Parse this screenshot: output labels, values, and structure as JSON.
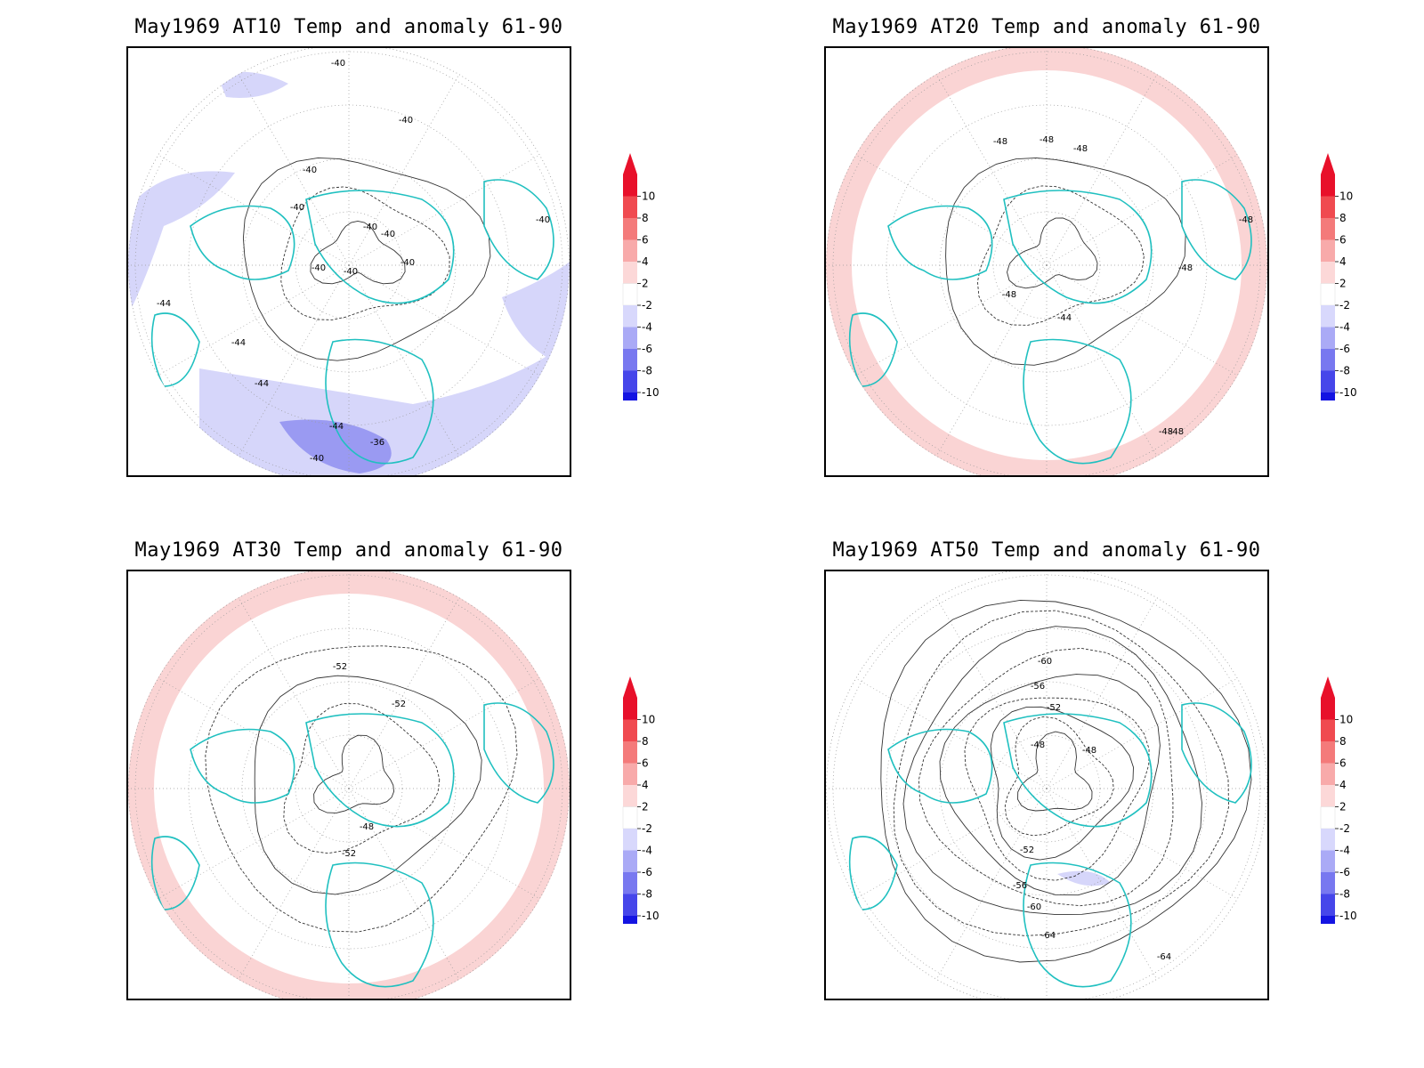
{
  "panels": [
    {
      "title": "May1969 AT10 Temp and anomaly 61-90",
      "contour_labels": [
        "-40",
        "-40",
        "-40",
        "-40",
        "-40",
        "-40",
        "-40",
        "-40",
        "-40",
        "-40",
        "-44",
        "-44",
        "-44",
        "-44",
        "-36",
        "-40"
      ],
      "anomaly": "cool"
    },
    {
      "title": "May1969 AT20 Temp and anomaly 61-90",
      "contour_labels": [
        "-48",
        "-48",
        "-48",
        "-48",
        "-48",
        "-48",
        "-44",
        "-48",
        "-48"
      ],
      "anomaly": "warm"
    },
    {
      "title": "May1969 AT30 Temp and anomaly 61-90",
      "contour_labels": [
        "-52",
        "-52",
        "-48",
        "-52"
      ],
      "anomaly": "warm"
    },
    {
      "title": "May1969 AT50 Temp and anomaly 61-90",
      "contour_labels": [
        "-60",
        "-56",
        "-52",
        "-48",
        "-48",
        "-52",
        "-56",
        "-60",
        "-64",
        "-64"
      ],
      "anomaly": "mixed"
    }
  ],
  "colorbar": {
    "labels": [
      "10",
      "8",
      "6",
      "4",
      "2",
      "-2",
      "-4",
      "-6",
      "-8",
      "-10"
    ],
    "colors": [
      "#e8102a",
      "#f04a50",
      "#f47a7a",
      "#f8aaaa",
      "#fcd8d8",
      "#ffffff",
      "#d8d8fc",
      "#aaaaf6",
      "#7878f0",
      "#4646ea",
      "#1414e2"
    ],
    "top_arrow_color": "#e8102a",
    "bottom_arrow_color": "#1414e2"
  },
  "colors": {
    "coast": "#20c0c0",
    "warm_anom": "#fad4d4",
    "cool_anom": "#d6d6fa",
    "strong_cool": "#9a9af2",
    "grid": "#999999"
  }
}
